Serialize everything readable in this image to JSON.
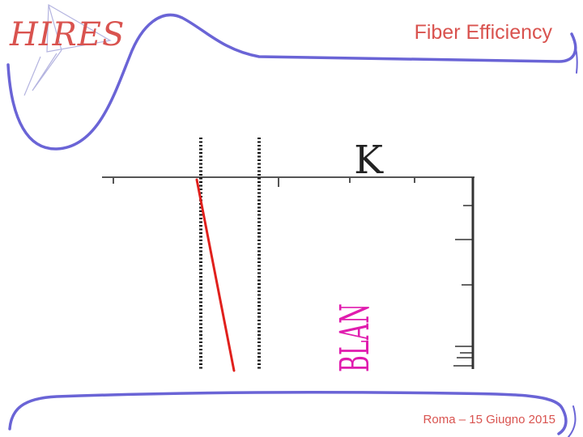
{
  "slide": {
    "title": "Fiber Efficiency",
    "footer": "Roma – 15 Giugno 2015"
  },
  "logo": {
    "text": "HIRES",
    "icon": "paper-plane-icon"
  },
  "figure": {
    "label_top": "K",
    "label_rotated": "BLAN"
  },
  "colors": {
    "accent": "#d9534f",
    "decor": "#6a64d6",
    "logo_line": "#b4b4e0",
    "trace": "#e0201c",
    "label_rotated": "#e01cae"
  }
}
